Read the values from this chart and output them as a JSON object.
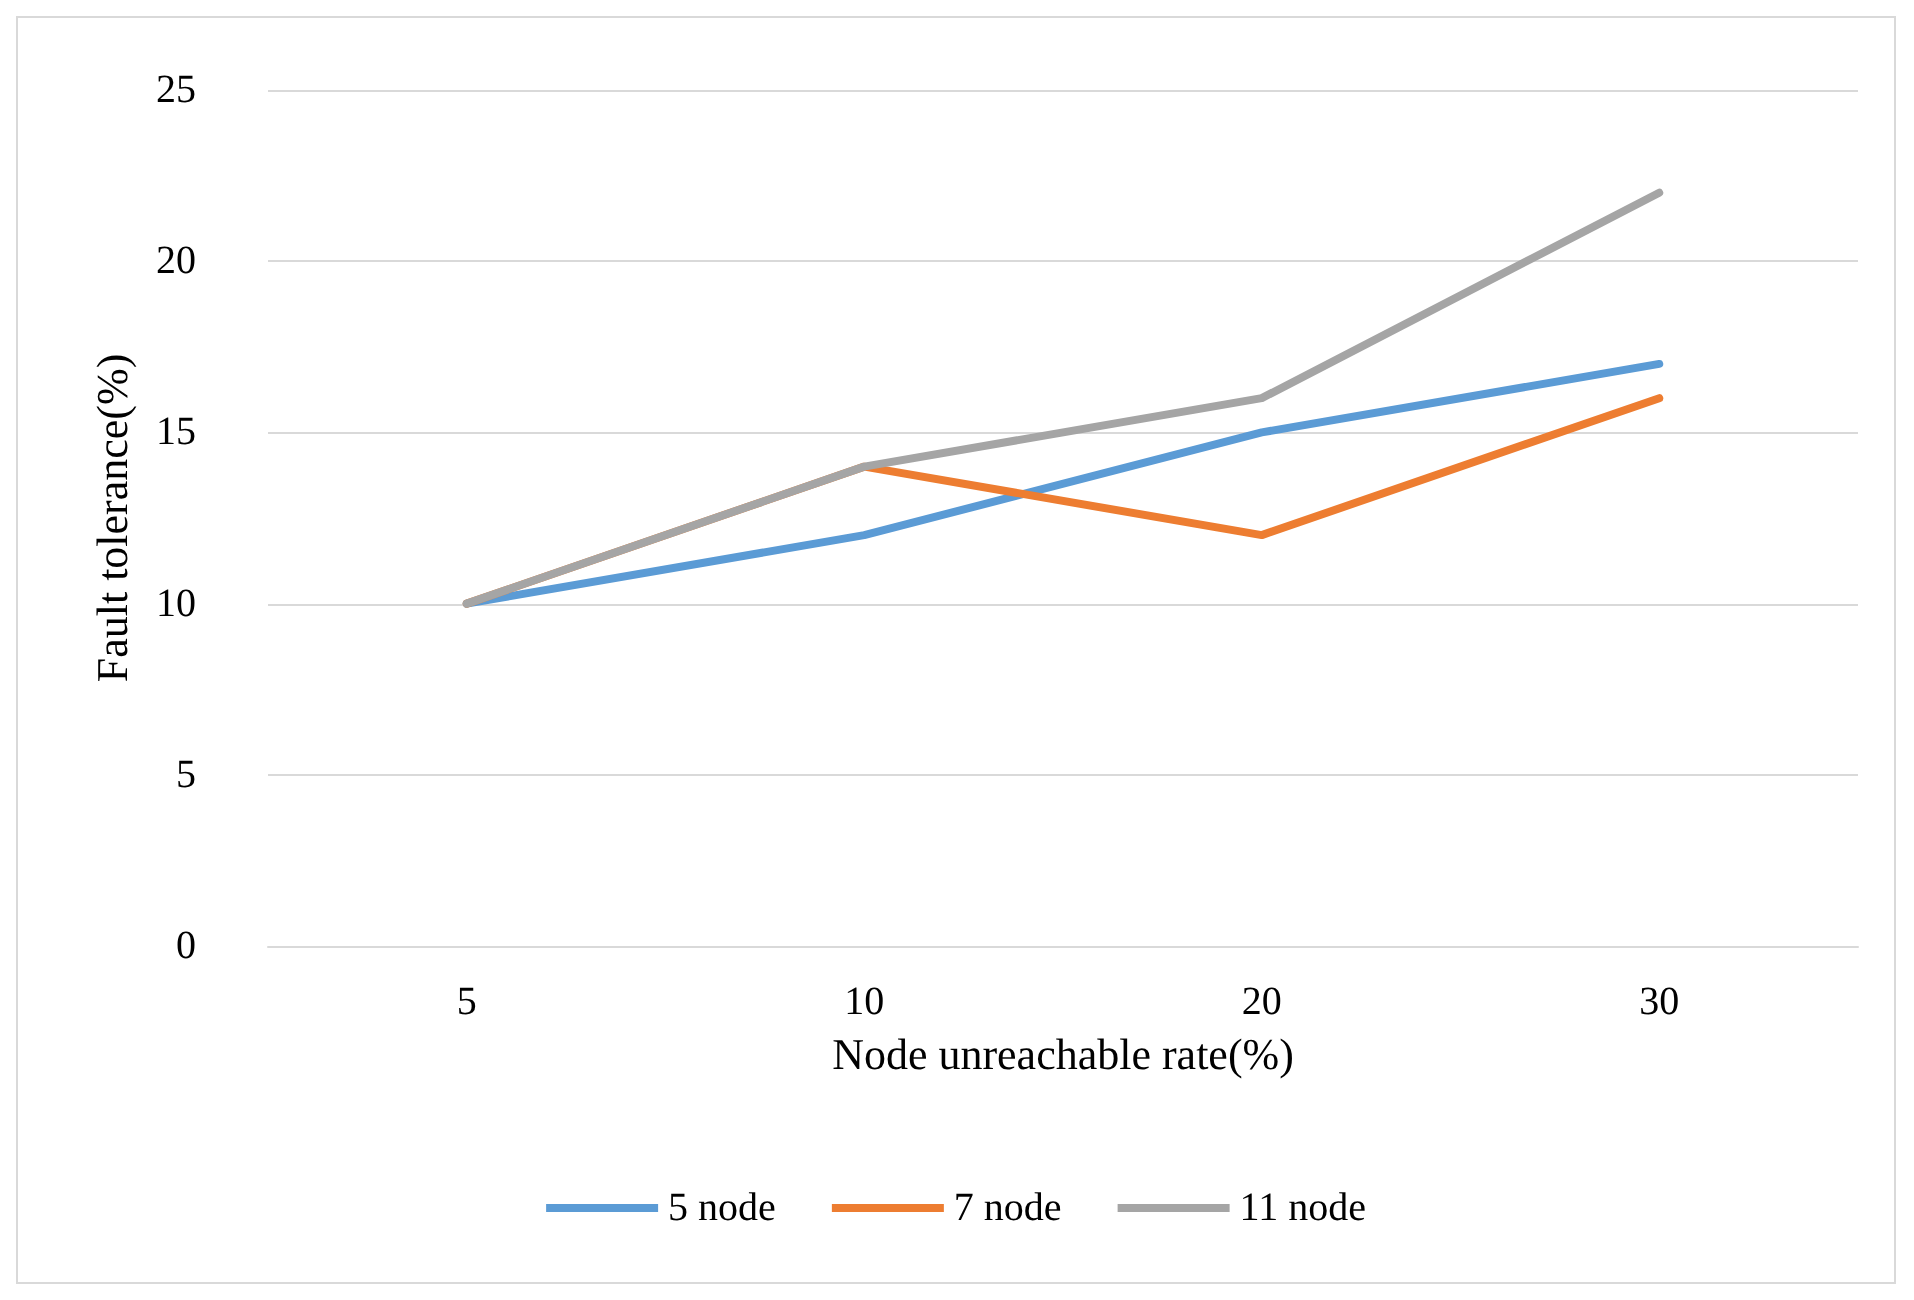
{
  "chart_data": {
    "type": "line",
    "xlabel": "Node unreachable rate(%)",
    "ylabel": "Fault tolerance(%)",
    "categories": [
      "5",
      "10",
      "20",
      "30"
    ],
    "series": [
      {
        "name": "5 node",
        "color": "#5b9bd5",
        "values": [
          10,
          12,
          15,
          17
        ]
      },
      {
        "name": "7 node",
        "color": "#ed7d31",
        "values": [
          10,
          14,
          12,
          16
        ]
      },
      {
        "name": "11 node",
        "color": "#a5a5a5",
        "values": [
          10,
          14,
          16,
          22
        ]
      }
    ],
    "ylim": [
      0,
      25
    ],
    "yticks": [
      0,
      5,
      10,
      15,
      20,
      25
    ],
    "grid": "y",
    "legend": "bottom",
    "marker": "none",
    "line_style": "solid"
  }
}
